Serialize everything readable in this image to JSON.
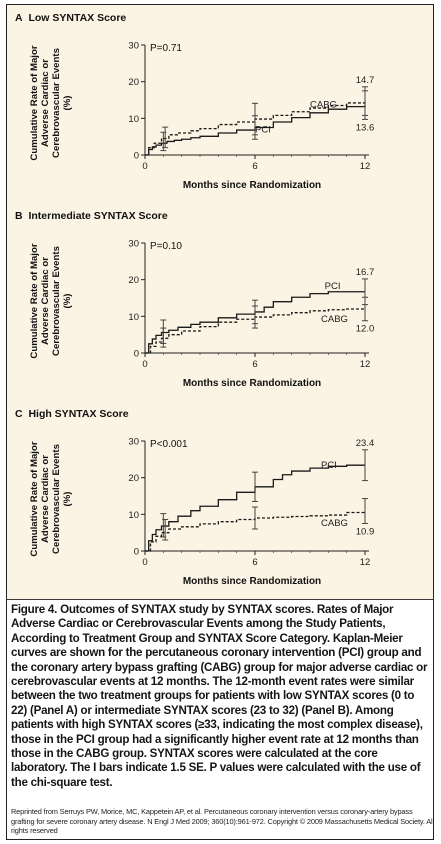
{
  "chart_data": [
    {
      "type": "line",
      "panel_label": "A",
      "title": "Low SYNTAX Score",
      "pvalue": "P=0.71",
      "xlabel": "Months since Randomization",
      "ylabel": [
        "Cumulative Rate of Major",
        "Adverse Cardiac or",
        "Cerebrovascular Events",
        "(%)"
      ],
      "xlim": [
        0,
        12
      ],
      "ylim": [
        0,
        30
      ],
      "xticks": [
        0,
        6,
        12
      ],
      "yticks": [
        0,
        10,
        20,
        30
      ],
      "series": [
        {
          "name": "PCI",
          "style": "solid",
          "x": [
            0,
            0.2,
            0.4,
            0.6,
            0.9,
            1.2,
            1.6,
            2.0,
            2.5,
            3.0,
            4.0,
            5.0,
            6.0,
            7.0,
            8.0,
            9.0,
            10.0,
            11.0,
            12.0
          ],
          "y": [
            0,
            1.5,
            2.2,
            2.7,
            3.2,
            3.7,
            4.0,
            4.3,
            4.7,
            5.1,
            6.0,
            6.8,
            7.5,
            9.0,
            10.2,
            11.5,
            12.5,
            13.2,
            13.6
          ],
          "error_bars": [
            {
              "x": 1,
              "y": 3.7,
              "low": 1.2,
              "high": 6.2
            },
            {
              "x": 6,
              "y": 7.5,
              "low": 4.3,
              "high": 10.7
            },
            {
              "x": 12,
              "y": 13.6,
              "low": 9.7,
              "high": 17.5
            }
          ]
        },
        {
          "name": "CABG",
          "style": "dashed",
          "x": [
            0,
            0.2,
            0.5,
            0.9,
            1.3,
            1.8,
            2.5,
            3.0,
            4.0,
            5.0,
            6.0,
            7.0,
            8.0,
            9.0,
            10.0,
            11.0,
            12.0
          ],
          "y": [
            0,
            2.0,
            3.2,
            4.5,
            5.5,
            6.0,
            6.6,
            7.2,
            8.3,
            9.0,
            9.8,
            10.8,
            11.8,
            12.8,
            13.5,
            14.2,
            14.7
          ],
          "error_bars": [
            {
              "x": 1.1,
              "y": 4.8,
              "low": 2.0,
              "high": 7.6
            },
            {
              "x": 6,
              "y": 9.8,
              "low": 5.5,
              "high": 14.1
            },
            {
              "x": 12,
              "y": 14.7,
              "low": 10.8,
              "high": 18.6
            }
          ]
        }
      ],
      "end_labels": [
        {
          "text": "14.7",
          "series": "CABG"
        },
        {
          "text": "13.6",
          "series": "PCI"
        }
      ]
    },
    {
      "type": "line",
      "panel_label": "B",
      "title": "Intermediate SYNTAX Score",
      "pvalue": "P=0.10",
      "xlabel": "Months since Randomization",
      "ylabel": [
        "Cumulative Rate of Major",
        "Adverse Cardiac or",
        "Cerebrovascular Events",
        "(%)"
      ],
      "xlim": [
        0,
        12
      ],
      "ylim": [
        0,
        30
      ],
      "xticks": [
        0,
        6,
        12
      ],
      "yticks": [
        0,
        10,
        20,
        30
      ],
      "series": [
        {
          "name": "PCI",
          "style": "solid",
          "x": [
            0,
            0.2,
            0.4,
            0.6,
            0.9,
            1.3,
            1.8,
            2.5,
            3.0,
            4.0,
            5.0,
            6.0,
            6.5,
            7.0,
            8.0,
            9.0,
            10.0,
            11.0,
            12.0
          ],
          "y": [
            0,
            2.5,
            3.8,
            4.8,
            5.6,
            6.2,
            7.0,
            7.8,
            8.4,
            9.6,
            10.6,
            11.2,
            12.5,
            14.0,
            15.2,
            16.2,
            16.7,
            16.7,
            16.7
          ],
          "error_bars": [
            {
              "x": 1,
              "y": 5.8,
              "low": 2.6,
              "high": 9.0
            },
            {
              "x": 6,
              "y": 11.2,
              "low": 8.0,
              "high": 14.4
            },
            {
              "x": 12,
              "y": 16.7,
              "low": 13.2,
              "high": 20.2
            }
          ]
        },
        {
          "name": "CABG",
          "style": "dashed",
          "x": [
            0,
            0.3,
            0.6,
            0.9,
            1.3,
            2.0,
            3.0,
            4.0,
            5.0,
            6.0,
            7.0,
            8.0,
            9.0,
            10.0,
            11.0,
            12.0
          ],
          "y": [
            0,
            1.8,
            3.0,
            4.0,
            5.0,
            6.0,
            7.2,
            8.4,
            9.2,
            9.8,
            10.4,
            11.0,
            11.5,
            11.8,
            12.0,
            12.0
          ],
          "error_bars": [
            {
              "x": 1,
              "y": 4.2,
              "low": 1.6,
              "high": 6.8
            },
            {
              "x": 6,
              "y": 9.8,
              "low": 6.8,
              "high": 12.8
            },
            {
              "x": 12,
              "y": 12.0,
              "low": 8.8,
              "high": 15.2
            }
          ]
        }
      ],
      "end_labels": [
        {
          "text": "16.7",
          "series": "PCI"
        },
        {
          "text": "12.0",
          "series": "CABG"
        }
      ]
    },
    {
      "type": "line",
      "panel_label": "C",
      "title": "High SYNTAX Score",
      "pvalue": "P<0.001",
      "xlabel": "Months since Randomization",
      "ylabel": [
        "Cumulative Rate of Major",
        "Adverse Cardiac or",
        "Cerebrovascular Events",
        "(%)"
      ],
      "xlim": [
        0,
        12
      ],
      "ylim": [
        0,
        30
      ],
      "xticks": [
        0,
        6,
        12
      ],
      "yticks": [
        0,
        10,
        20,
        30
      ],
      "series": [
        {
          "name": "PCI",
          "style": "solid",
          "x": [
            0,
            0.2,
            0.4,
            0.6,
            0.9,
            1.3,
            1.8,
            2.5,
            3.0,
            4.0,
            5.0,
            6.0,
            7.0,
            7.5,
            8.0,
            9.0,
            10.0,
            11.0,
            12.0
          ],
          "y": [
            0,
            2.8,
            4.5,
            5.8,
            6.8,
            8.0,
            9.5,
            11.0,
            12.2,
            14.0,
            16.0,
            17.5,
            19.5,
            20.8,
            21.8,
            22.6,
            23.1,
            23.4,
            23.4
          ],
          "error_bars": [
            {
              "x": 1,
              "y": 7.0,
              "low": 3.8,
              "high": 10.2
            },
            {
              "x": 6,
              "y": 17.5,
              "low": 13.5,
              "high": 21.5
            },
            {
              "x": 12,
              "y": 23.4,
              "low": 19.2,
              "high": 27.6
            }
          ]
        },
        {
          "name": "CABG",
          "style": "dashed",
          "x": [
            0,
            0.3,
            0.6,
            0.9,
            1.3,
            2.0,
            3.0,
            4.0,
            5.0,
            6.0,
            7.0,
            8.0,
            9.0,
            10.0,
            11.0,
            12.0
          ],
          "y": [
            0,
            2.5,
            4.0,
            5.0,
            6.0,
            6.6,
            7.4,
            8.0,
            8.6,
            9.0,
            9.2,
            9.4,
            9.6,
            9.8,
            10.5,
            10.9
          ],
          "error_bars": [
            {
              "x": 1.1,
              "y": 5.8,
              "low": 3.0,
              "high": 8.6
            },
            {
              "x": 6,
              "y": 9.0,
              "low": 6.0,
              "high": 12.0
            },
            {
              "x": 12,
              "y": 10.9,
              "low": 7.5,
              "high": 14.3
            }
          ]
        }
      ],
      "end_labels": [
        {
          "text": "23.4",
          "series": "PCI"
        },
        {
          "text": "10.9",
          "series": "CABG"
        }
      ]
    }
  ],
  "caption": {
    "label": "Figure 4.",
    "text": "Outcomes of SYNTAX study by SYNTAX scores. Rates of Major Adverse Cardiac or Cerebrovascular Events among the Study Patients, According to Treatment Group and SYNTAX Score Category. Kaplan-Meier curves are shown for the percutaneous coronary intervention (PCI) group and the coronary artery bypass grafting (CABG) group for major adverse cardiac or cerebrovascular events at 12 months. The 12-month event rates were similar between the two treatment groups for patients with low SYNTAX scores (0 to 22) (Panel A) or intermediate SYNTAX scores (23 to 32) (Panel B). Among patients with high SYNTAX scores (≥33, indicating the most complex disease), those in the PCI group had a significantly higher event rate at 12 months than those in the CABG group. SYNTAX scores were calculated at the core laboratory. The I bars indicate 1.5 SE. P values were calculated with the use of the chi-square test."
  },
  "credit": "Reprinted from Serruys PW, Morice, MC, Kappetein AP, et al. Percutaneous coronary intervention versus coronary-artery bypass grafting for severe coronary artery disease. N Engl J Med 2009; 360(10):961-972. Copyright © 2009 Massachusetts Medical Society. All rights reserved",
  "colors": {
    "panel_background": "#fbf3e3",
    "line": "#1a1a1a",
    "error_bar": "#444444",
    "caption_text": "#151515"
  }
}
